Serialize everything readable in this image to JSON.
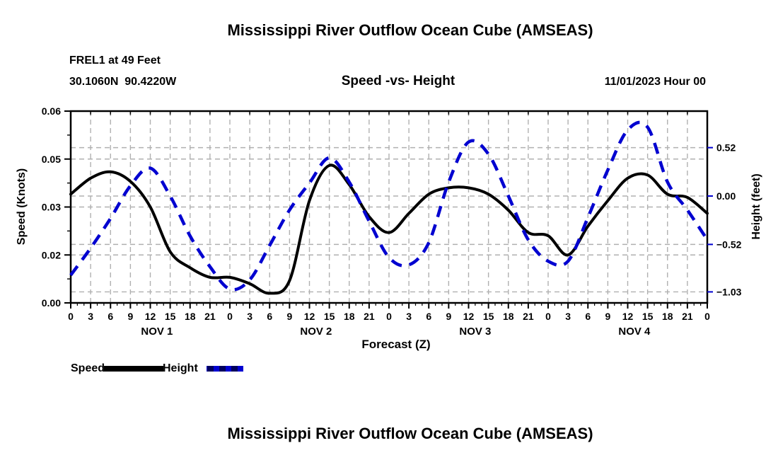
{
  "page": {
    "top_title": "Mississippi River Outflow Ocean Cube (AMSEAS)",
    "bottom_title": "Mississippi River Outflow Ocean Cube (AMSEAS)",
    "station_line1": "FREL1 at 49 Feet",
    "station_line2": "30.1060N  90.4220W",
    "plot_subtitle": "Speed -vs- Height",
    "datetime_label": "11/01/2023 Hour 00"
  },
  "colors": {
    "speed": "#000000",
    "height": "#0000d0",
    "grid": "#b0b0b0",
    "background": "#ffffff"
  },
  "legend": [
    {
      "label": "Speed",
      "color": "#000000",
      "style": "solid"
    },
    {
      "label": "Height",
      "color": "#0000d0",
      "style": "dashed"
    }
  ],
  "chart_data": {
    "type": "line",
    "title": "Speed -vs- Height",
    "xlabel": "Forecast (Z)",
    "ylabel_left": "Speed (Knots)",
    "ylabel_right": "Height (feet)",
    "grid": true,
    "legend_position": "bottom-left",
    "x_hours": [
      0,
      3,
      6,
      9,
      12,
      15,
      18,
      21,
      24,
      27,
      30,
      33,
      36,
      39,
      42,
      45,
      48,
      51,
      54,
      57,
      60,
      63,
      66,
      69,
      72,
      75,
      78,
      81,
      84,
      87,
      90,
      93,
      96
    ],
    "x_tick_labels": [
      "0",
      "3",
      "6",
      "9",
      "12",
      "15",
      "18",
      "21",
      "0",
      "3",
      "6",
      "9",
      "12",
      "15",
      "18",
      "21",
      "0",
      "3",
      "6",
      "9",
      "12",
      "15",
      "18",
      "21",
      "0",
      "3",
      "6",
      "9",
      "12",
      "15",
      "18",
      "21",
      "0"
    ],
    "day_labels": [
      "NOV 1",
      "NOV 2",
      "NOV 3",
      "NOV 4"
    ],
    "left_axis": {
      "tick_labels": [
        "0.06",
        "0.05",
        "0.03",
        "0.02",
        "0.00"
      ],
      "min": 0.0,
      "max": 0.06
    },
    "right_axis": {
      "tick_labels": [
        "0.52",
        "0.00",
        "−0.52",
        "−1.03"
      ],
      "tick_values": [
        0.52,
        0.0,
        -0.52,
        -1.03
      ]
    },
    "series": [
      {
        "name": "Speed",
        "axis": "left",
        "units": "knots",
        "color": "#000000",
        "line": "solid",
        "values": [
          0.034,
          0.039,
          0.041,
          0.038,
          0.03,
          0.016,
          0.011,
          0.008,
          0.008,
          0.006,
          0.003,
          0.007,
          0.032,
          0.043,
          0.037,
          0.027,
          0.022,
          0.028,
          0.034,
          0.036,
          0.036,
          0.034,
          0.029,
          0.022,
          0.021,
          0.015,
          0.024,
          0.032,
          0.039,
          0.04,
          0.034,
          0.033,
          0.028
        ]
      },
      {
        "name": "Height",
        "axis": "right",
        "units": "feet",
        "color": "#0000d0",
        "line": "dashed",
        "values": [
          -0.85,
          -0.56,
          -0.24,
          0.11,
          0.3,
          0.0,
          -0.43,
          -0.76,
          -1.0,
          -0.9,
          -0.53,
          -0.15,
          0.14,
          0.41,
          0.15,
          -0.27,
          -0.66,
          -0.74,
          -0.5,
          0.15,
          0.58,
          0.45,
          0.0,
          -0.47,
          -0.7,
          -0.7,
          -0.23,
          0.28,
          0.71,
          0.74,
          0.15,
          -0.15,
          -0.47
        ]
      }
    ]
  }
}
